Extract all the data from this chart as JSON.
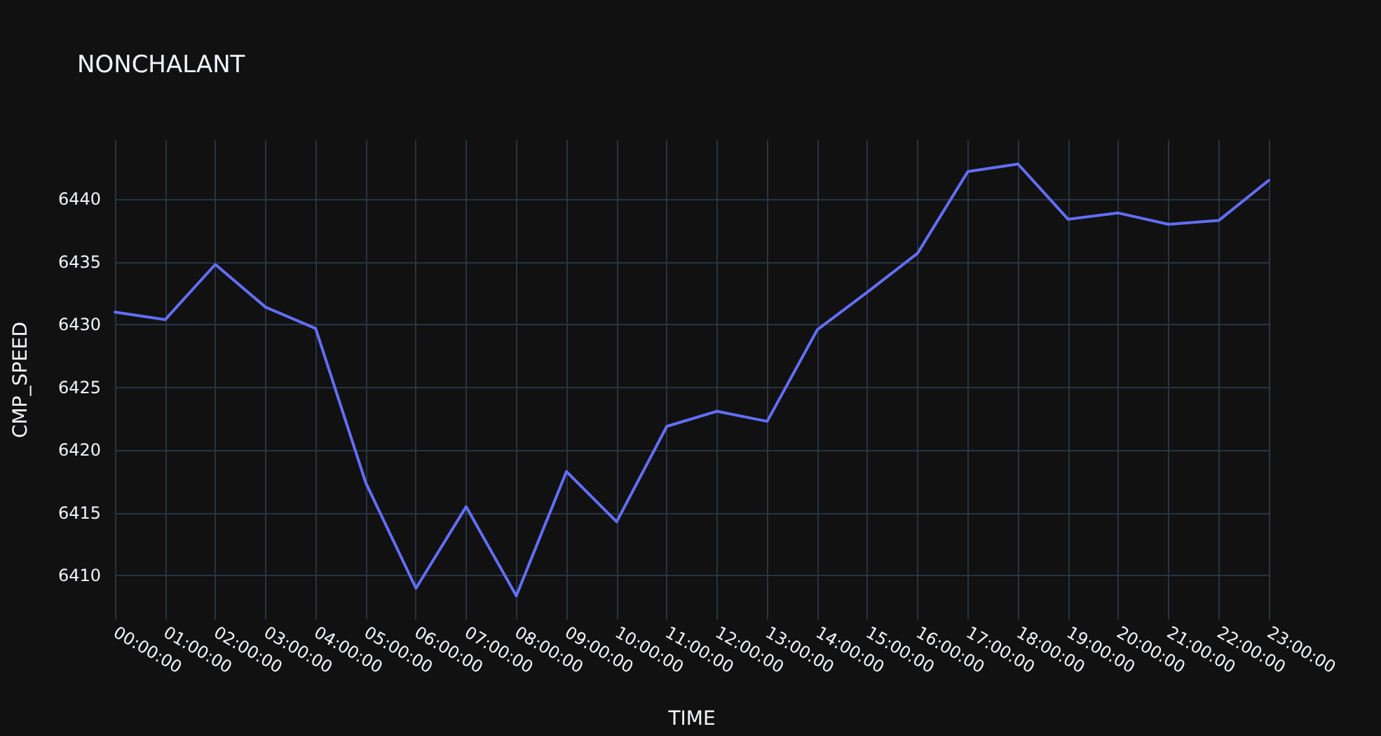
{
  "chart_data": {
    "type": "line",
    "title": "NONCHALANT",
    "xlabel": "TIME",
    "ylabel": "CMP_SPEED",
    "categories": [
      "00:00:00",
      "01:00:00",
      "02:00:00",
      "03:00:00",
      "04:00:00",
      "05:00:00",
      "06:00:00",
      "07:00:00",
      "08:00:00",
      "09:00:00",
      "10:00:00",
      "11:00:00",
      "12:00:00",
      "13:00:00",
      "14:00:00",
      "15:00:00",
      "16:00:00",
      "17:00:00",
      "18:00:00",
      "19:00:00",
      "20:00:00",
      "21:00:00",
      "22:00:00",
      "23:00:00"
    ],
    "values": [
      6431.0,
      6430.4,
      6434.8,
      6431.4,
      6429.7,
      6417.4,
      6409.0,
      6415.5,
      6408.4,
      6418.3,
      6414.3,
      6421.9,
      6423.1,
      6422.3,
      6429.6,
      6432.6,
      6435.7,
      6442.2,
      6442.8,
      6438.4,
      6438.9,
      6438.0,
      6438.3,
      6441.5
    ],
    "color": "#636efa",
    "ylim": [
      6406.5,
      6444.7
    ],
    "yticks": [
      6410,
      6415,
      6420,
      6425,
      6430,
      6435,
      6440
    ],
    "grid": true,
    "marker": "none"
  }
}
